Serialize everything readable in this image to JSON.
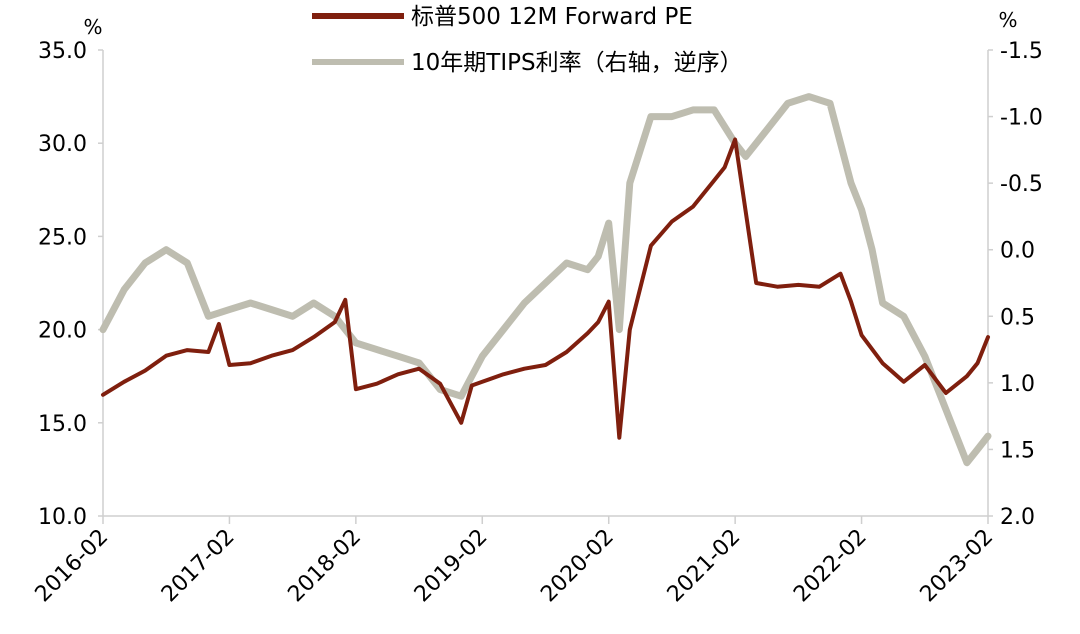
{
  "chart_data": {
    "type": "line",
    "left_axis": {
      "unit": "%",
      "ylim": [
        10,
        35
      ],
      "ticks": [
        "35.0",
        "30.0",
        "25.0",
        "20.0",
        "15.0",
        "10.0"
      ]
    },
    "right_axis": {
      "unit": "%",
      "ylim": [
        -1.5,
        2.0
      ],
      "reversed": true,
      "ticks": [
        "-1.5",
        "-1.0",
        "-0.5",
        "0.0",
        "0.5",
        "1.0",
        "1.5",
        "2.0"
      ]
    },
    "x_ticks": [
      "2016-02",
      "2017-02",
      "2018-02",
      "2019-02",
      "2020-02",
      "2021-02",
      "2022-02",
      "2023-02"
    ],
    "legend": {
      "placement": "top-center"
    },
    "grid": false,
    "series": [
      {
        "name": "标普500 12M Forward PE",
        "axis": "left",
        "color": "#7f1f0e",
        "x": [
          "2016-02",
          "2016-04",
          "2016-06",
          "2016-08",
          "2016-10",
          "2016-12",
          "2017-01",
          "2017-02",
          "2017-04",
          "2017-06",
          "2017-08",
          "2017-10",
          "2017-12",
          "2018-01",
          "2018-02",
          "2018-04",
          "2018-06",
          "2018-08",
          "2018-10",
          "2018-12",
          "2019-01",
          "2019-02",
          "2019-04",
          "2019-06",
          "2019-08",
          "2019-10",
          "2019-12",
          "2020-01",
          "2020-02",
          "2020-03",
          "2020-04",
          "2020-06",
          "2020-08",
          "2020-10",
          "2020-12",
          "2021-01",
          "2021-02",
          "2021-04",
          "2021-06",
          "2021-08",
          "2021-10",
          "2021-12",
          "2022-01",
          "2022-02",
          "2022-04",
          "2022-06",
          "2022-08",
          "2022-10",
          "2022-12",
          "2023-01",
          "2023-02"
        ],
        "values": [
          16.5,
          17.2,
          17.8,
          18.6,
          18.9,
          18.8,
          20.3,
          18.1,
          18.2,
          18.6,
          18.9,
          19.6,
          20.4,
          21.6,
          16.8,
          17.1,
          17.6,
          17.9,
          17.1,
          15.0,
          17.0,
          17.2,
          17.6,
          17.9,
          18.1,
          18.8,
          19.8,
          20.4,
          21.5,
          14.2,
          20.0,
          24.5,
          25.8,
          26.6,
          28.0,
          28.7,
          30.2,
          22.5,
          22.3,
          22.4,
          22.3,
          23.0,
          21.5,
          19.7,
          18.2,
          17.2,
          18.1,
          16.6,
          17.5,
          18.2,
          19.6
        ]
      },
      {
        "name": "10年期TIPS利率（右轴，逆序）",
        "axis": "right",
        "color": "#bebdb0",
        "x": [
          "2016-02",
          "2016-04",
          "2016-06",
          "2016-08",
          "2016-10",
          "2016-12",
          "2017-02",
          "2017-04",
          "2017-06",
          "2017-08",
          "2017-10",
          "2017-12",
          "2018-02",
          "2018-04",
          "2018-06",
          "2018-08",
          "2018-10",
          "2018-12",
          "2019-02",
          "2019-04",
          "2019-06",
          "2019-08",
          "2019-10",
          "2019-12",
          "2020-01",
          "2020-02",
          "2020-03",
          "2020-04",
          "2020-06",
          "2020-08",
          "2020-10",
          "2020-12",
          "2021-02",
          "2021-03",
          "2021-05",
          "2021-07",
          "2021-09",
          "2021-11",
          "2021-12",
          "2022-01",
          "2022-02",
          "2022-03",
          "2022-04",
          "2022-06",
          "2022-08",
          "2022-10",
          "2022-12",
          "2023-01",
          "2023-02"
        ],
        "values": [
          0.6,
          0.3,
          0.1,
          0.0,
          0.1,
          0.5,
          0.45,
          0.4,
          0.45,
          0.5,
          0.4,
          0.5,
          0.7,
          0.75,
          0.8,
          0.85,
          1.05,
          1.1,
          0.8,
          0.6,
          0.4,
          0.25,
          0.1,
          0.15,
          0.05,
          -0.2,
          0.6,
          -0.5,
          -1.0,
          -1.0,
          -1.05,
          -1.05,
          -0.8,
          -0.7,
          -0.9,
          -1.1,
          -1.15,
          -1.1,
          -0.8,
          -0.5,
          -0.3,
          0.0,
          0.4,
          0.5,
          0.8,
          1.2,
          1.6,
          1.5,
          1.4
        ]
      }
    ]
  }
}
